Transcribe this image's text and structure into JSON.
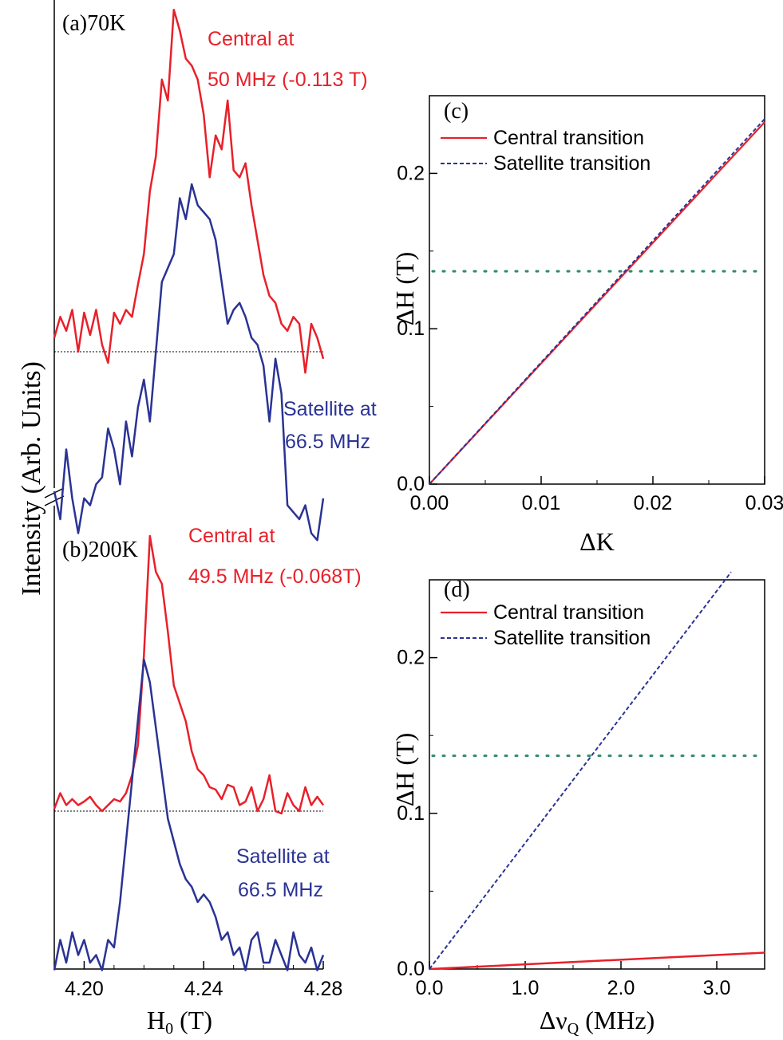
{
  "colors": {
    "central": "#e8202a",
    "satellite": "#2a3394",
    "reference": "#2f8a6a",
    "axis": "#000000"
  },
  "labels": {
    "y_label_left": "Intensity (Arb. Units)",
    "x_label_left_main": "H",
    "x_label_left_sub": "0",
    "x_label_left_unit": " (T)",
    "panel_a": "(a)70K",
    "panel_b": "(b)200K",
    "a_central_line1": "Central at",
    "a_central_line2": "50 MHz (-0.113 T)",
    "a_satellite_line1": "Satellite at",
    "a_satellite_line2": "66.5 MHz",
    "b_central_line1": "Central at",
    "b_central_line2": "49.5 MHz (-0.068T)",
    "b_satellite_line1": "Satellite at",
    "b_satellite_line2": "66.5 MHz",
    "panel_c": "(c)",
    "panel_d": "(d)",
    "c_xlabel": "ΔK",
    "c_ylabel": "ΔH (T)",
    "d_xlabel_main": "Δν",
    "d_xlabel_sub": "Q",
    "d_xlabel_unit": " (MHz)",
    "d_ylabel": "ΔH (T)",
    "legend_central": "Central transition",
    "legend_satellite": "Satellite transition"
  },
  "chart_data": [
    {
      "id": "a",
      "type": "line",
      "x_unit": "T",
      "xlim": [
        4.19,
        4.28
      ],
      "series": [
        {
          "name": "Central at 50 MHz (-0.113 T)",
          "x": [
            4.19,
            4.192,
            4.194,
            4.196,
            4.198,
            4.2,
            4.202,
            4.204,
            4.206,
            4.208,
            4.21,
            4.212,
            4.214,
            4.216,
            4.218,
            4.22,
            4.222,
            4.224,
            4.226,
            4.228,
            4.23,
            4.232,
            4.234,
            4.236,
            4.238,
            4.24,
            4.242,
            4.244,
            4.246,
            4.248,
            4.25,
            4.252,
            4.254,
            4.256,
            4.258,
            4.26,
            4.262,
            4.264,
            4.266,
            4.268,
            4.27,
            4.272,
            4.274,
            4.276,
            4.278,
            4.28
          ],
          "y": [
            0.1,
            0.25,
            0.15,
            0.3,
            0.0,
            0.28,
            0.12,
            0.3,
            0.05,
            -0.08,
            0.28,
            0.2,
            0.3,
            0.25,
            0.48,
            0.7,
            1.15,
            1.4,
            1.95,
            1.8,
            2.45,
            2.3,
            2.1,
            2.05,
            1.95,
            1.7,
            1.25,
            1.55,
            1.45,
            1.8,
            1.3,
            1.25,
            1.35,
            1.05,
            0.8,
            0.55,
            0.4,
            0.35,
            0.2,
            0.15,
            0.25,
            0.2,
            -0.15,
            0.2,
            0.1,
            -0.05
          ]
        },
        {
          "name": "Satellite at 66.5 MHz",
          "x": [
            4.19,
            4.192,
            4.194,
            4.196,
            4.198,
            4.2,
            4.202,
            4.204,
            4.206,
            4.208,
            4.21,
            4.212,
            4.214,
            4.216,
            4.218,
            4.22,
            4.222,
            4.224,
            4.226,
            4.228,
            4.23,
            4.232,
            4.234,
            4.236,
            4.238,
            4.24,
            4.242,
            4.244,
            4.246,
            4.248,
            4.25,
            4.252,
            4.254,
            4.256,
            4.258,
            4.26,
            4.262,
            4.264,
            4.266,
            4.268,
            4.27,
            4.272,
            4.274,
            4.276,
            4.278,
            4.28
          ],
          "y": [
            -1.0,
            -1.2,
            -0.7,
            -1.05,
            -1.3,
            -1.05,
            -1.1,
            -0.95,
            -0.9,
            -0.55,
            -0.7,
            -0.95,
            -0.5,
            -0.75,
            -0.4,
            -0.2,
            -0.5,
            0.0,
            0.5,
            0.6,
            0.7,
            1.1,
            0.95,
            1.2,
            1.05,
            1.0,
            0.95,
            0.8,
            0.5,
            0.2,
            0.3,
            0.35,
            0.25,
            0.1,
            0.05,
            -0.1,
            -0.5,
            -0.05,
            -0.3,
            -1.1,
            -1.15,
            -1.2,
            -1.1,
            -1.3,
            -1.35,
            -1.05
          ]
        }
      ]
    },
    {
      "id": "b",
      "type": "line",
      "x_unit": "T",
      "xticks": [
        4.2,
        4.24,
        4.28
      ],
      "xlim": [
        4.19,
        4.28
      ],
      "xlabel": "H0 (T)",
      "series": [
        {
          "name": "Central at 49.5 MHz (-0.068T)",
          "x": [
            4.19,
            4.192,
            4.194,
            4.196,
            4.198,
            4.2,
            4.202,
            4.204,
            4.206,
            4.208,
            4.21,
            4.212,
            4.214,
            4.216,
            4.218,
            4.22,
            4.222,
            4.224,
            4.226,
            4.228,
            4.23,
            4.232,
            4.234,
            4.236,
            4.238,
            4.24,
            4.242,
            4.244,
            4.246,
            4.248,
            4.25,
            4.252,
            4.254,
            4.256,
            4.258,
            4.26,
            4.262,
            4.264,
            4.266,
            4.268,
            4.27,
            4.272,
            4.274,
            4.276,
            4.278,
            4.28
          ],
          "y": [
            0.02,
            0.15,
            0.05,
            0.1,
            0.05,
            0.08,
            0.12,
            0.05,
            0.0,
            0.05,
            0.1,
            0.08,
            0.15,
            0.3,
            0.55,
            1.3,
            2.3,
            2.0,
            1.9,
            1.5,
            1.05,
            0.9,
            0.75,
            0.5,
            0.35,
            0.3,
            0.2,
            0.18,
            0.1,
            0.22,
            0.2,
            0.05,
            0.08,
            0.2,
            0.0,
            0.1,
            0.3,
            0.0,
            -0.02,
            0.15,
            0.05,
            0.0,
            0.2,
            0.05,
            0.12,
            0.05
          ]
        },
        {
          "name": "Satellite at 66.5 MHz",
          "x": [
            4.19,
            4.192,
            4.194,
            4.196,
            4.198,
            4.2,
            4.202,
            4.204,
            4.206,
            4.208,
            4.21,
            4.212,
            4.214,
            4.216,
            4.218,
            4.22,
            4.222,
            4.224,
            4.226,
            4.228,
            4.23,
            4.232,
            4.234,
            4.236,
            4.238,
            4.24,
            4.242,
            4.244,
            4.246,
            4.248,
            4.25,
            4.252,
            4.254,
            4.256,
            4.258,
            4.26,
            4.262,
            4.264,
            4.266,
            4.268,
            4.27,
            4.272,
            4.274,
            4.276,
            4.278,
            4.28
          ],
          "y": [
            -1.05,
            -0.85,
            -1.0,
            -0.8,
            -0.95,
            -0.85,
            -1.0,
            -0.95,
            -1.05,
            -0.85,
            -0.9,
            -0.6,
            -0.2,
            0.2,
            0.6,
            1.0,
            0.85,
            0.55,
            0.25,
            -0.05,
            -0.2,
            -0.35,
            -0.45,
            -0.5,
            -0.6,
            -0.55,
            -0.6,
            -0.7,
            -0.85,
            -0.8,
            -0.95,
            -0.9,
            -1.05,
            -0.85,
            -0.8,
            -1.0,
            -1.0,
            -0.85,
            -0.95,
            -1.05,
            -0.8,
            -0.95,
            -1.0,
            -0.9,
            -1.05,
            -0.95
          ]
        }
      ]
    },
    {
      "id": "c",
      "type": "line",
      "xlabel": "ΔK",
      "ylabel": "ΔH (T)",
      "xlim": [
        0.0,
        0.03
      ],
      "ylim": [
        0.0,
        0.25
      ],
      "xticks": [
        "0.00",
        "0.01",
        "0.02",
        "0.03"
      ],
      "yticks": [
        "0.0",
        "0.1",
        "0.2"
      ],
      "reference_line_y": 0.137,
      "legend_position": "top-left",
      "series": [
        {
          "name": "Central transition",
          "x": [
            0.0,
            0.03
          ],
          "y": [
            0.0,
            0.233
          ]
        },
        {
          "name": "Satellite transition",
          "x": [
            0.0,
            0.03
          ],
          "y": [
            0.0,
            0.235
          ]
        }
      ]
    },
    {
      "id": "d",
      "type": "line",
      "xlabel": "Δν_Q (MHz)",
      "ylabel": "ΔH (T)",
      "xlim": [
        0.0,
        3.5
      ],
      "ylim": [
        0.0,
        0.25
      ],
      "xticks": [
        "0.0",
        "1.0",
        "2.0",
        "3.0"
      ],
      "yticks": [
        "0.0",
        "0.1",
        "0.2"
      ],
      "reference_line_y": 0.137,
      "legend_position": "top-left",
      "series": [
        {
          "name": "Central transition",
          "x": [
            0.0,
            3.5
          ],
          "y": [
            0.0,
            0.0105
          ]
        },
        {
          "name": "Satellite transition",
          "x": [
            0.0,
            3.15
          ],
          "y": [
            0.0,
            0.255
          ]
        }
      ]
    }
  ]
}
